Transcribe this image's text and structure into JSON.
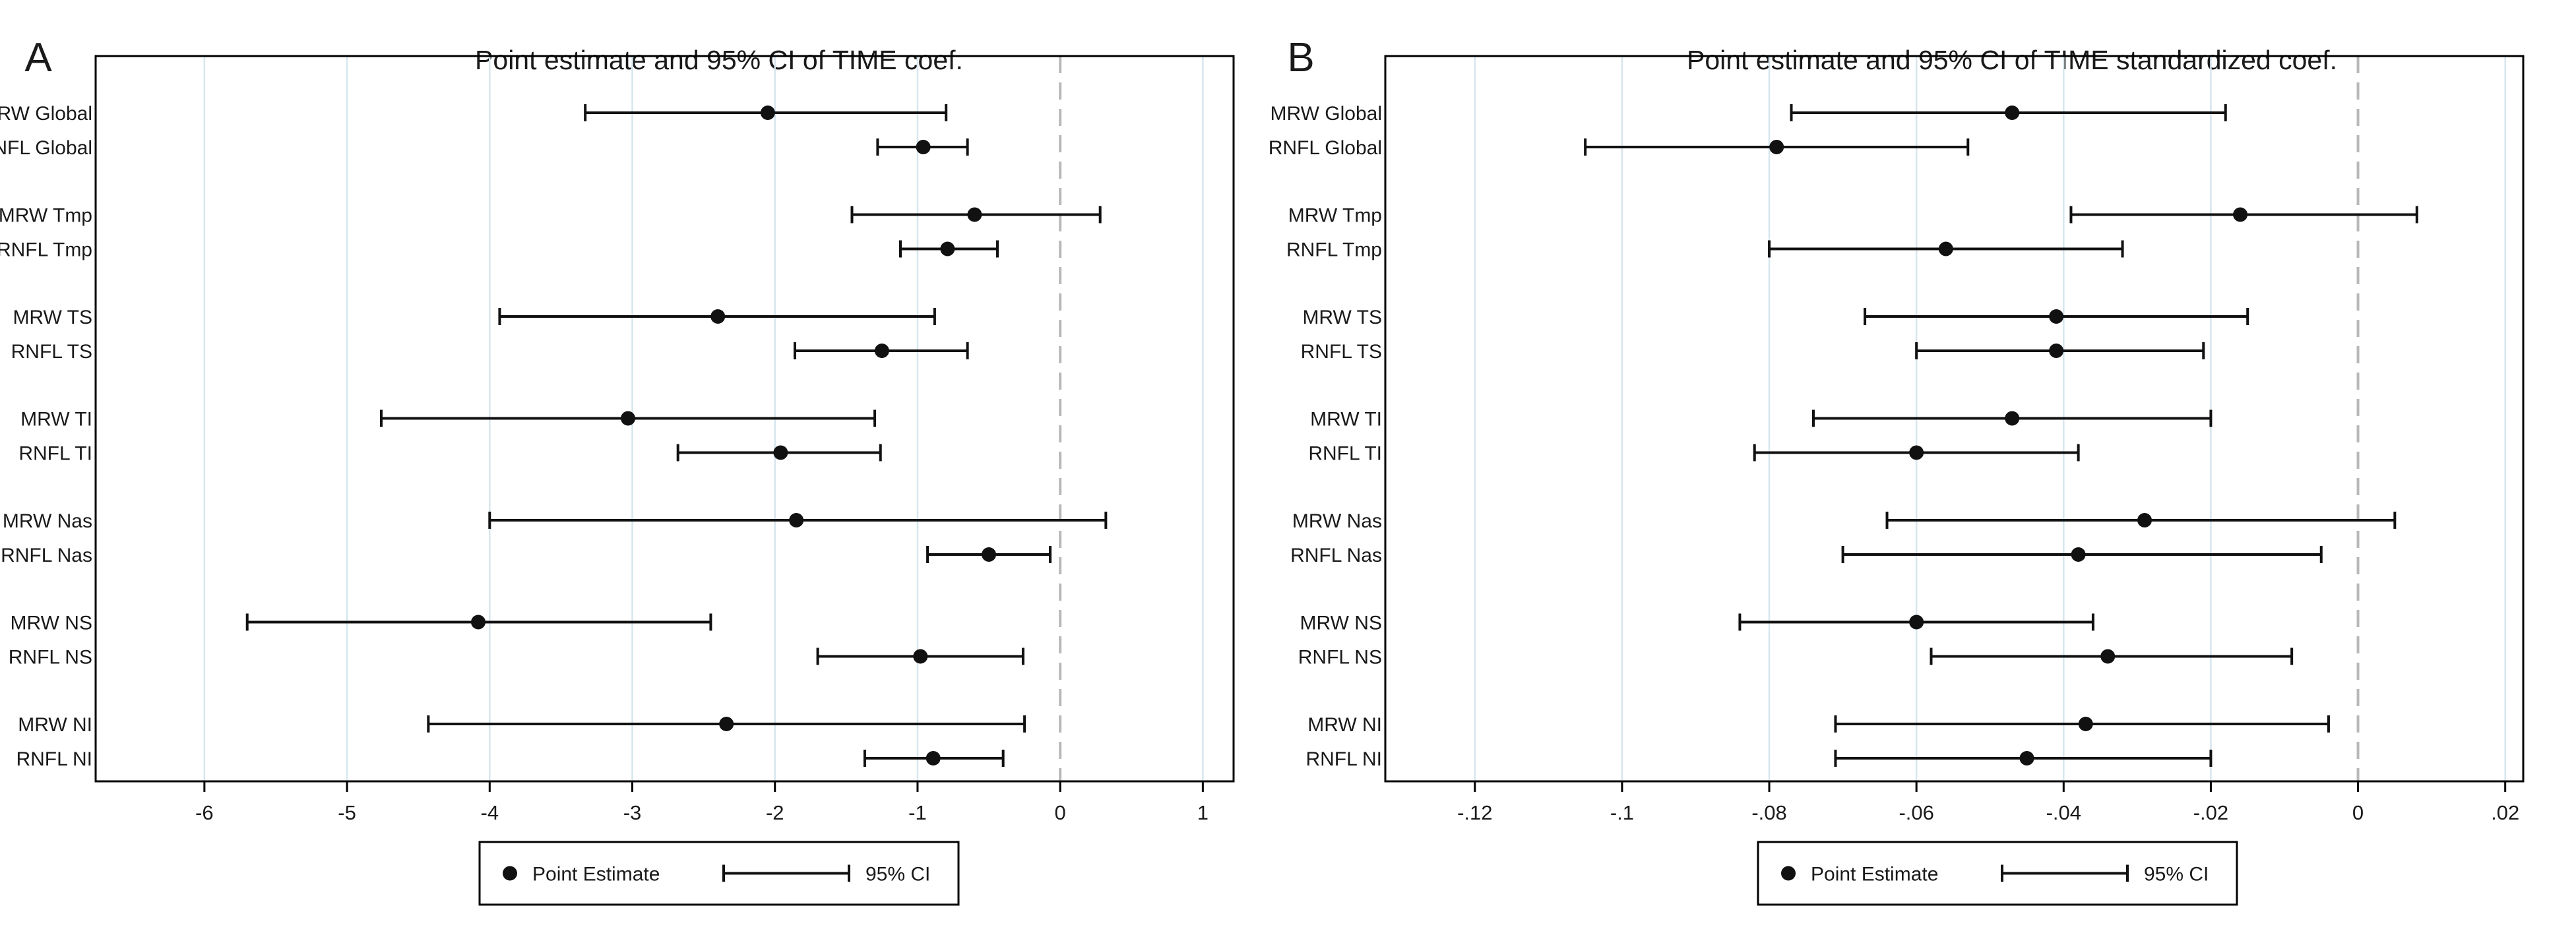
{
  "figure": {
    "panel_labels": [
      "A",
      "B"
    ]
  },
  "colors": {
    "axis": "#000000",
    "grid": "#d6e6ee",
    "zero_line": "#b8b8b8",
    "marks": "#111111",
    "frame": "#000000",
    "text": "#1a1a1a"
  },
  "chart_data": [
    {
      "type": "forest",
      "panel": "A",
      "title": "Point estimate and 95% CI of TIME coef.",
      "xlim": [
        -6.3,
        1.1
      ],
      "xticks": [
        -6,
        -5,
        -4,
        -3,
        -2,
        -1,
        0,
        1
      ],
      "xtick_labels": [
        "-6",
        "-5",
        "-4",
        "-3",
        "-2",
        "-1",
        "0",
        "1"
      ],
      "grid": true,
      "reference_line": 0,
      "legend": {
        "placement": "bottom-center",
        "items": [
          "Point Estimate",
          "95% CI"
        ]
      },
      "rows": [
        {
          "label": "MRW Global",
          "estimate": -2.05,
          "lower": -3.33,
          "upper": -0.8
        },
        {
          "label": "RNFL Global",
          "estimate": -0.96,
          "lower": -1.28,
          "upper": -0.65
        },
        {
          "label": "MRW Tmp",
          "estimate": -0.6,
          "lower": -1.46,
          "upper": 0.28
        },
        {
          "label": "RNFL Tmp",
          "estimate": -0.79,
          "lower": -1.12,
          "upper": -0.44
        },
        {
          "label": "MRW TS",
          "estimate": -2.4,
          "lower": -3.93,
          "upper": -0.88
        },
        {
          "label": "RNFL TS",
          "estimate": -1.25,
          "lower": -1.86,
          "upper": -0.65
        },
        {
          "label": "MRW TI",
          "estimate": -3.03,
          "lower": -4.76,
          "upper": -1.3
        },
        {
          "label": "RNFL TI",
          "estimate": -1.96,
          "lower": -2.68,
          "upper": -1.26
        },
        {
          "label": "MRW Nas",
          "estimate": -1.85,
          "lower": -4.0,
          "upper": 0.32
        },
        {
          "label": "RNFL Nas",
          "estimate": -0.5,
          "lower": -0.93,
          "upper": -0.07
        },
        {
          "label": "MRW NS",
          "estimate": -4.08,
          "lower": -5.7,
          "upper": -2.45
        },
        {
          "label": "RNFL NS",
          "estimate": -0.98,
          "lower": -1.7,
          "upper": -0.26
        },
        {
          "label": "MRW NI",
          "estimate": -2.34,
          "lower": -4.43,
          "upper": -0.25
        },
        {
          "label": "RNFL NI",
          "estimate": -0.89,
          "lower": -1.37,
          "upper": -0.4
        }
      ]
    },
    {
      "type": "forest",
      "panel": "B",
      "title": "Point estimate and 95% CI of TIME standardized coef.",
      "xlim": [
        -0.125,
        0.022
      ],
      "xticks": [
        -0.12,
        -0.1,
        -0.08,
        -0.06,
        -0.04,
        -0.02,
        0,
        0.02
      ],
      "xtick_labels": [
        "-.12",
        "-.1",
        "-.08",
        "-.06",
        "-.04",
        "-.02",
        "0",
        ".02"
      ],
      "grid": true,
      "reference_line": 0,
      "legend": {
        "placement": "bottom-center",
        "items": [
          "Point Estimate",
          "95% CI"
        ]
      },
      "rows": [
        {
          "label": "MRW Global",
          "estimate": -0.047,
          "lower": -0.077,
          "upper": -0.018
        },
        {
          "label": "RNFL Global",
          "estimate": -0.079,
          "lower": -0.105,
          "upper": -0.053
        },
        {
          "label": "MRW Tmp",
          "estimate": -0.016,
          "lower": -0.039,
          "upper": 0.008
        },
        {
          "label": "RNFL Tmp",
          "estimate": -0.056,
          "lower": -0.08,
          "upper": -0.032
        },
        {
          "label": "MRW TS",
          "estimate": -0.041,
          "lower": -0.067,
          "upper": -0.015
        },
        {
          "label": "RNFL TS",
          "estimate": -0.041,
          "lower": -0.06,
          "upper": -0.021
        },
        {
          "label": "MRW TI",
          "estimate": -0.047,
          "lower": -0.074,
          "upper": -0.02
        },
        {
          "label": "RNFL TI",
          "estimate": -0.06,
          "lower": -0.082,
          "upper": -0.038
        },
        {
          "label": "MRW Nas",
          "estimate": -0.029,
          "lower": -0.064,
          "upper": 0.005
        },
        {
          "label": "RNFL Nas",
          "estimate": -0.038,
          "lower": -0.07,
          "upper": -0.005
        },
        {
          "label": "MRW NS",
          "estimate": -0.06,
          "lower": -0.084,
          "upper": -0.036
        },
        {
          "label": "RNFL NS",
          "estimate": -0.034,
          "lower": -0.058,
          "upper": -0.009
        },
        {
          "label": "MRW NI",
          "estimate": -0.037,
          "lower": -0.071,
          "upper": -0.004
        },
        {
          "label": "RNFL NI",
          "estimate": -0.045,
          "lower": -0.071,
          "upper": -0.02
        }
      ]
    }
  ]
}
